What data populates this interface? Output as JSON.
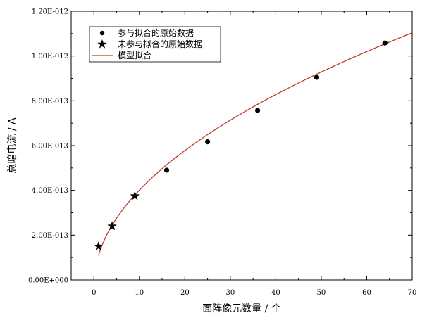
{
  "chart_data": {
    "type": "scatter",
    "xlabel": "面阵像元数量 / 个",
    "ylabel": "总暗电流 / A",
    "xlim": [
      -5,
      70
    ],
    "ylim": [
      0,
      1.2e-12
    ],
    "x_ticks": [
      0,
      10,
      20,
      30,
      40,
      50,
      60,
      70
    ],
    "x_tick_labels": [
      "0",
      "10",
      "20",
      "30",
      "40",
      "50",
      "60",
      "70"
    ],
    "y_ticks": [
      0,
      2e-13,
      4e-13,
      6e-13,
      8e-13,
      1e-12,
      1.2e-12
    ],
    "y_tick_labels": [
      "0.00E+000",
      "2.00E-013",
      "4.00E-013",
      "6.00E-013",
      "8.00E-013",
      "1.00E-012",
      "1.20E-012"
    ],
    "legend_position": "top-left",
    "series": [
      {
        "name": "参与拟合的原始数据",
        "marker": "circle",
        "color": "#000000",
        "points": [
          [
            16,
            4.9e-13
          ],
          [
            25,
            6.17e-13
          ],
          [
            36,
            7.57e-13
          ],
          [
            49,
            9.05e-13
          ],
          [
            64,
            1.058e-12
          ]
        ]
      },
      {
        "name": "未参与拟合的原始数据",
        "marker": "star",
        "color": "#000000",
        "points": [
          [
            1,
            1.5e-13
          ],
          [
            4,
            2.4e-13
          ],
          [
            9,
            3.75e-13
          ]
        ]
      },
      {
        "name": "模型拟合",
        "type": "line",
        "color": "#c0392b",
        "fit": {
          "form": "a*sqrt(x)+b",
          "a": 1.35e-13,
          "b": -2.6e-14,
          "x_range": [
            1,
            70
          ]
        }
      }
    ]
  }
}
